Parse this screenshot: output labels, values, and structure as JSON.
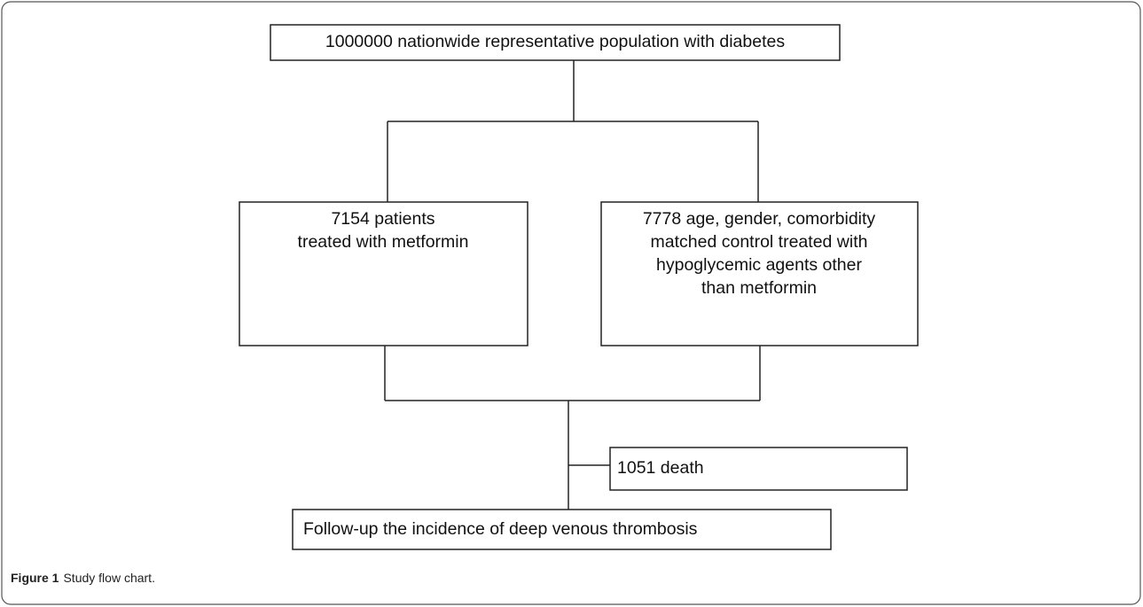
{
  "nodes": [
    {
      "lines": [
        "1000000 nationwide representative population with diabetes"
      ]
    },
    {
      "lines": [
        "7154 patients",
        "treated with metformin"
      ]
    },
    {
      "lines": [
        "7778 age, gender, comorbidity",
        "matched control treated with",
        "hypoglycemic agents other",
        "than metformin"
      ]
    },
    {
      "lines": [
        "1051 death"
      ]
    },
    {
      "lines": [
        "Follow-up the incidence of deep venous thrombosis"
      ]
    }
  ],
  "caption": {
    "label": "Figure 1",
    "text": "Study flow chart."
  }
}
